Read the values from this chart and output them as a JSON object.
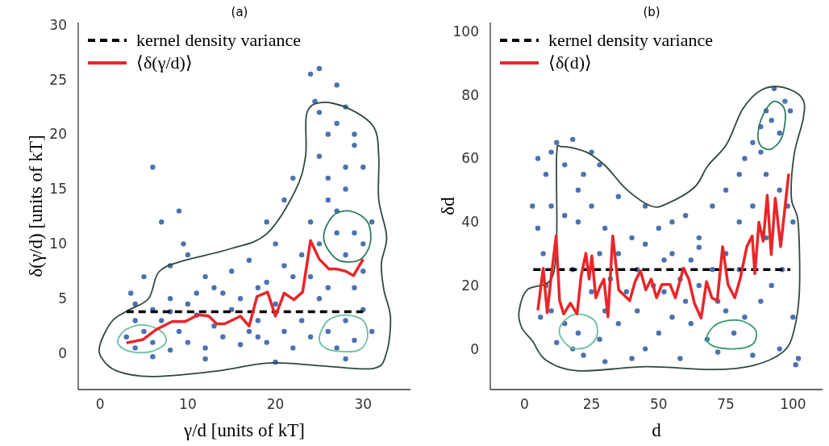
{
  "chart_data": [
    {
      "type": "scatter",
      "title": "(a)",
      "xlabel": "γ/d [units of kT]",
      "ylabel": "δ(γ/d) [units of kT]",
      "xlim": [
        -2.5,
        35.4
      ],
      "ylim": [
        -3.3,
        30.2
      ],
      "xticks": [
        0,
        10,
        20,
        30
      ],
      "yticks": [
        0,
        5,
        10,
        15,
        20,
        25,
        30
      ],
      "legend": "top left",
      "series": [
        {
          "color": "#4c72b0",
          "marker": "circle",
          "x": [
            3,
            4,
            5,
            6,
            7,
            8,
            9,
            10,
            11,
            12,
            13,
            14,
            15,
            16,
            17,
            18,
            19,
            20,
            21,
            22,
            23,
            24,
            25,
            26,
            27,
            28,
            29,
            30,
            31,
            4,
            10,
            16,
            19,
            24,
            26,
            29,
            12,
            20,
            28,
            6,
            18,
            8,
            13,
            21,
            25,
            30,
            27,
            28,
            26,
            29,
            25,
            28,
            6,
            9,
            7,
            9.5,
            4,
            3.5,
            5,
            8,
            10,
            12,
            15,
            17,
            19,
            20,
            21,
            22,
            24,
            25,
            24.5,
            27,
            26,
            25,
            27,
            29,
            30,
            28,
            26,
            29,
            28,
            30,
            27,
            31,
            24,
            23,
            22,
            18,
            14,
            11,
            8,
            6
          ],
          "values": [
            1.5,
            0.5,
            2,
            1,
            3,
            0.3,
            2,
            1,
            3.5,
            0.5,
            2.5,
            1.5,
            4,
            0.8,
            2,
            3,
            1,
            4.5,
            2,
            0.5,
            3,
            1.5,
            5,
            2,
            0.5,
            3,
            1.2,
            4,
            2,
            3,
            4.5,
            5,
            6.5,
            7,
            6,
            6,
            -0.5,
            -0.8,
            -0.5,
            -0.3,
            1.5,
            3.8,
            6,
            8,
            10,
            7.5,
            13,
            17,
            16,
            19,
            22,
            22.5,
            17,
            13,
            12,
            10,
            4.5,
            5.5,
            7,
            8,
            9,
            7,
            7.5,
            8.5,
            12,
            10,
            14,
            16,
            25.5,
            26,
            23,
            24.5,
            20,
            18,
            21,
            20,
            17,
            15,
            14,
            11,
            9,
            10,
            11,
            12,
            12,
            9,
            7,
            6,
            5.5,
            5.5,
            5,
            4
          ]
        },
        {
          "type": "line",
          "name": "kernel density variance",
          "color": "#000000",
          "marker": "none",
          "line_style": "dashed",
          "x": [
            3,
            30
          ],
          "values": [
            3.8,
            3.8
          ]
        },
        {
          "type": "line",
          "name": "⟨δ(γ/d)⟩",
          "color": "#e8262a",
          "marker": "none",
          "line_style": "solid",
          "x": [
            3,
            4.9,
            6.4,
            8.2,
            9.7,
            11.2,
            12.4,
            13.3,
            14.2,
            16,
            17,
            17.9,
            19.1,
            20,
            21,
            22.1,
            23.1,
            24,
            25,
            26.1,
            27,
            28,
            28.9,
            30
          ],
          "values": [
            0.96,
            1.27,
            2.18,
            2.9,
            2.9,
            3.53,
            3.4,
            2.7,
            2.7,
            3.4,
            2.5,
            5.2,
            5.6,
            3.4,
            5.5,
            4.9,
            5.6,
            10.3,
            8.6,
            7.7,
            7.7,
            7.5,
            7.1,
            8.6
          ]
        }
      ]
    },
    {
      "type": "scatter",
      "title": "(b)",
      "xlabel": "d",
      "ylabel": "δd",
      "xlim": [
        -12.7,
        111
      ],
      "ylim": [
        -12.8,
        102.8
      ],
      "xticks": [
        0,
        25,
        50,
        75,
        100
      ],
      "yticks": [
        0,
        20,
        40,
        60,
        80,
        100
      ],
      "legend": "top left",
      "series": [
        {
          "color": "#4c72b0",
          "marker": "circle",
          "x": [
            5,
            8,
            10,
            12,
            15,
            18,
            20,
            22,
            25,
            28,
            3,
            5,
            7,
            10,
            15,
            20,
            25,
            30,
            35,
            40,
            45,
            50,
            55,
            60,
            65,
            70,
            75,
            80,
            82,
            85,
            88,
            90,
            92,
            95,
            97,
            99,
            93,
            88,
            90,
            95,
            98,
            100,
            85,
            80,
            75,
            70,
            65,
            60,
            55,
            50,
            45,
            40,
            35,
            30,
            25,
            20,
            15,
            10,
            12,
            18,
            22,
            28,
            32,
            38,
            42,
            48,
            52,
            58,
            62,
            68,
            72,
            78,
            82,
            88,
            92,
            96,
            100,
            95,
            102,
            101,
            85,
            75,
            65,
            55,
            45,
            35,
            28,
            18,
            8,
            6,
            30,
            58,
            42,
            52,
            62,
            72,
            80,
            90
          ],
          "values": [
            60,
            55,
            62,
            65,
            58,
            66,
            50,
            55,
            62,
            58,
            45,
            38,
            30,
            45,
            42,
            40,
            45,
            38,
            48,
            35,
            33,
            38,
            30,
            42,
            35,
            45,
            50,
            55,
            60,
            65,
            70,
            75,
            72,
            68,
            78,
            75,
            82,
            62,
            55,
            50,
            45,
            40,
            45,
            40,
            30,
            25,
            20,
            15,
            10,
            5,
            0,
            -3,
            8,
            12,
            18,
            5,
            8,
            12,
            2,
            0,
            -2,
            3,
            22,
            18,
            25,
            20,
            28,
            22,
            8,
            3,
            -1,
            5,
            10,
            15,
            20,
            25,
            10,
            0,
            -3,
            -5,
            -2,
            12,
            32,
            40,
            45,
            30,
            30,
            25,
            20,
            10,
            -4,
            -3,
            12,
            18,
            28,
            15,
            25,
            35
          ]
        },
        {
          "type": "line",
          "name": "kernel density variance",
          "color": "#000000",
          "marker": "none",
          "line_style": "dashed",
          "x": [
            3.3,
            99
          ],
          "values": [
            25,
            25
          ]
        },
        {
          "type": "line",
          "name": "⟨δ(d)⟩",
          "color": "#e8262a",
          "marker": "none",
          "line_style": "solid",
          "x": [
            5,
            7,
            8.5,
            10,
            11.8,
            13.1,
            14.6,
            17.1,
            19.6,
            21.1,
            22.9,
            24.1,
            25.1,
            26.6,
            28.1,
            29.6,
            31.1,
            32.9,
            35.1,
            37.1,
            39.2,
            41.2,
            43.2,
            45.2,
            47.2,
            49.2,
            51.2,
            54.2,
            56.2,
            59.2,
            61.2,
            63.3,
            65.8,
            67.8,
            69.8,
            71.8,
            73.8,
            75.8,
            78.3,
            80.3,
            82.8,
            84.8,
            85.8,
            87.3,
            88.9,
            90.4,
            91.9,
            93.4,
            95.4,
            98.4
          ],
          "values": [
            12.2,
            25.4,
            11.4,
            22.9,
            35.6,
            15.2,
            11,
            14.4,
            11,
            22.9,
            30.1,
            22,
            29.3,
            16.1,
            19.5,
            22,
            10.1,
            35.6,
            18.6,
            16.9,
            15.2,
            21.2,
            24.6,
            18.6,
            22,
            16.1,
            20.3,
            20.3,
            16.1,
            25.4,
            22,
            14.4,
            9.7,
            21.2,
            16.1,
            15.2,
            32.2,
            20.3,
            16.1,
            22,
            32.2,
            35.6,
            23.7,
            39.9,
            33.9,
            48.4,
            29.7,
            47.5,
            32.2,
            55.2
          ]
        }
      ]
    }
  ]
}
